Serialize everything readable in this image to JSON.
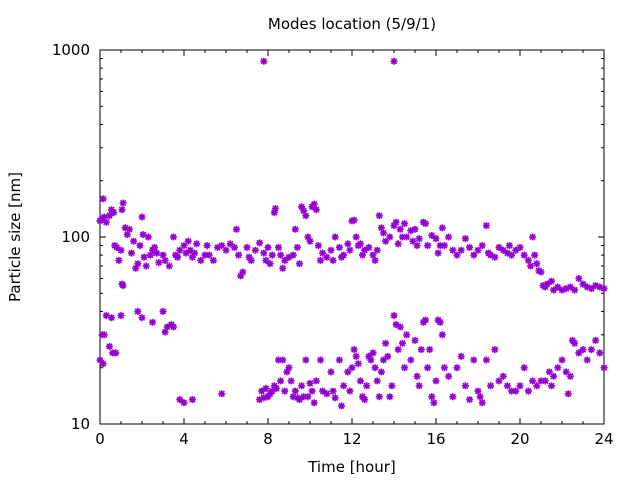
{
  "chart_data": {
    "type": "scatter",
    "title": "Modes location (5/9/1)",
    "xlabel": "Time [hour]",
    "ylabel": "Particle size [nm]",
    "x_range": [
      0,
      24
    ],
    "y_range": [
      10,
      1000
    ],
    "y_scale": "log",
    "x_ticks": [
      "0",
      "4",
      "8",
      "12",
      "16",
      "20",
      "24"
    ],
    "y_ticks": [
      "10",
      "100",
      "1000"
    ],
    "grid": false,
    "marker": "star",
    "marker_color": "#9400d3",
    "series": [
      {
        "points": [
          [
            0.0,
            122
          ],
          [
            0.1,
            126
          ],
          [
            0.15,
            160
          ],
          [
            0.2,
            128
          ],
          [
            0.3,
            120
          ],
          [
            0.45,
            130
          ],
          [
            0.55,
            140
          ],
          [
            0.65,
            135
          ],
          [
            0.7,
            90
          ],
          [
            0.8,
            88
          ],
          [
            0.9,
            75
          ],
          [
            1.0,
            85
          ],
          [
            1.05,
            140
          ],
          [
            1.1,
            152
          ],
          [
            1.2,
            112
          ],
          [
            1.3,
            103
          ],
          [
            1.4,
            110
          ],
          [
            1.5,
            82
          ],
          [
            1.6,
            95
          ],
          [
            1.7,
            68
          ],
          [
            1.8,
            72
          ],
          [
            1.9,
            90
          ],
          [
            2.0,
            128
          ],
          [
            2.05,
            103
          ],
          [
            2.1,
            78
          ],
          [
            2.2,
            70
          ],
          [
            2.3,
            100
          ],
          [
            2.4,
            80
          ],
          [
            2.5,
            85
          ],
          [
            2.6,
            88
          ],
          [
            2.7,
            82
          ],
          [
            2.8,
            73
          ],
          [
            3.0,
            80
          ],
          [
            3.1,
            75
          ],
          [
            3.3,
            70
          ],
          [
            3.5,
            100
          ],
          [
            3.6,
            80
          ],
          [
            3.7,
            78
          ],
          [
            3.8,
            85
          ],
          [
            4.0,
            90
          ],
          [
            4.1,
            82
          ],
          [
            4.2,
            95
          ],
          [
            4.3,
            85
          ],
          [
            4.4,
            78
          ],
          [
            4.5,
            82
          ],
          [
            4.6,
            92
          ],
          [
            4.8,
            75
          ],
          [
            5.0,
            80
          ],
          [
            5.1,
            90
          ],
          [
            5.2,
            80
          ],
          [
            5.4,
            75
          ],
          [
            5.6,
            88
          ],
          [
            5.8,
            90
          ],
          [
            6.0,
            85
          ],
          [
            6.2,
            92
          ],
          [
            6.4,
            88
          ],
          [
            6.5,
            110
          ],
          [
            6.6,
            80
          ],
          [
            6.7,
            62
          ],
          [
            6.8,
            65
          ],
          [
            7.0,
            88
          ],
          [
            7.1,
            78
          ],
          [
            7.2,
            75
          ],
          [
            7.4,
            85
          ],
          [
            7.6,
            93
          ],
          [
            7.8,
            82
          ],
          [
            7.9,
            75
          ],
          [
            8.0,
            88
          ],
          [
            8.1,
            72
          ],
          [
            8.2,
            80
          ],
          [
            8.3,
            135
          ],
          [
            8.35,
            142
          ],
          [
            8.5,
            88
          ],
          [
            8.6,
            80
          ],
          [
            8.7,
            68
          ],
          [
            8.8,
            75
          ],
          [
            9.0,
            78
          ],
          [
            9.2,
            80
          ],
          [
            9.3,
            110
          ],
          [
            9.4,
            88
          ],
          [
            9.5,
            72
          ],
          [
            9.6,
            145
          ],
          [
            9.7,
            138
          ],
          [
            9.8,
            130
          ],
          [
            9.9,
            100
          ],
          [
            10.0,
            95
          ],
          [
            10.1,
            145
          ],
          [
            10.2,
            150
          ],
          [
            10.3,
            140
          ],
          [
            10.4,
            90
          ],
          [
            10.5,
            75
          ],
          [
            10.6,
            82
          ],
          [
            10.8,
            78
          ],
          [
            11.0,
            85
          ],
          [
            11.1,
            75
          ],
          [
            11.2,
            100
          ],
          [
            11.4,
            88
          ],
          [
            11.5,
            78
          ],
          [
            11.6,
            80
          ],
          [
            11.8,
            92
          ],
          [
            11.9,
            85
          ],
          [
            12.0,
            122
          ],
          [
            12.1,
            123
          ],
          [
            12.2,
            100
          ],
          [
            12.3,
            90
          ],
          [
            12.4,
            92
          ],
          [
            12.5,
            80
          ],
          [
            12.6,
            85
          ],
          [
            12.8,
            88
          ],
          [
            13.0,
            80
          ],
          [
            13.1,
            75
          ],
          [
            13.2,
            85
          ],
          [
            13.3,
            130
          ],
          [
            13.4,
            112
          ],
          [
            13.5,
            105
          ],
          [
            13.6,
            95
          ],
          [
            13.8,
            100
          ],
          [
            14.0,
            115
          ],
          [
            14.1,
            120
          ],
          [
            14.2,
            92
          ],
          [
            14.3,
            110
          ],
          [
            14.4,
            100
          ],
          [
            14.5,
            118
          ],
          [
            14.6,
            100
          ],
          [
            14.8,
            108
          ],
          [
            14.9,
            95
          ],
          [
            15.0,
            110
          ],
          [
            15.1,
            90
          ],
          [
            15.2,
            98
          ],
          [
            15.4,
            120
          ],
          [
            15.5,
            118
          ],
          [
            15.6,
            90
          ],
          [
            15.8,
            102
          ],
          [
            16.0,
            98
          ],
          [
            16.1,
            82
          ],
          [
            16.2,
            90
          ],
          [
            16.3,
            112
          ],
          [
            16.4,
            90
          ],
          [
            16.6,
            100
          ],
          [
            16.8,
            85
          ],
          [
            17.0,
            80
          ],
          [
            17.2,
            85
          ],
          [
            17.4,
            98
          ],
          [
            17.6,
            88
          ],
          [
            17.8,
            80
          ],
          [
            18.0,
            85
          ],
          [
            18.2,
            90
          ],
          [
            18.4,
            115
          ],
          [
            18.5,
            82
          ],
          [
            18.6,
            80
          ],
          [
            18.8,
            78
          ],
          [
            19.0,
            88
          ],
          [
            19.2,
            85
          ],
          [
            19.4,
            82
          ],
          [
            19.5,
            90
          ],
          [
            19.6,
            80
          ],
          [
            19.8,
            85
          ],
          [
            20.0,
            88
          ],
          [
            20.2,
            80
          ],
          [
            20.4,
            75
          ],
          [
            20.5,
            70
          ],
          [
            20.6,
            100
          ],
          [
            20.7,
            80
          ],
          [
            20.8,
            72
          ],
          [
            20.9,
            66
          ],
          [
            21.0,
            65
          ],
          [
            21.1,
            55
          ],
          [
            21.2,
            54
          ],
          [
            21.3,
            56
          ],
          [
            21.5,
            58
          ],
          [
            21.6,
            52
          ],
          [
            21.8,
            54
          ],
          [
            22.0,
            52
          ],
          [
            22.2,
            53
          ],
          [
            22.4,
            54
          ],
          [
            22.6,
            52
          ],
          [
            22.8,
            60
          ],
          [
            23.0,
            56
          ],
          [
            23.2,
            54
          ],
          [
            23.4,
            53
          ],
          [
            23.6,
            55
          ],
          [
            23.8,
            54
          ],
          [
            24.0,
            53
          ],
          [
            0.0,
            22
          ],
          [
            0.1,
            30
          ],
          [
            0.15,
            21
          ],
          [
            0.2,
            30
          ],
          [
            0.3,
            38
          ],
          [
            0.45,
            26
          ],
          [
            0.55,
            37
          ],
          [
            0.6,
            24
          ],
          [
            0.75,
            24
          ],
          [
            1.0,
            38
          ],
          [
            1.05,
            56
          ],
          [
            1.1,
            55
          ],
          [
            1.8,
            40
          ],
          [
            2.0,
            37
          ],
          [
            2.5,
            35
          ],
          [
            3.0,
            40
          ],
          [
            3.1,
            31
          ],
          [
            3.2,
            33
          ],
          [
            3.4,
            34
          ],
          [
            3.5,
            33
          ],
          [
            3.8,
            13.5
          ],
          [
            4.0,
            13
          ],
          [
            4.4,
            13.5
          ],
          [
            5.8,
            14.5
          ],
          [
            7.6,
            13.5
          ],
          [
            7.7,
            15
          ],
          [
            7.8,
            13.8
          ],
          [
            7.9,
            15.5
          ],
          [
            8.0,
            14
          ],
          [
            8.1,
            14.5
          ],
          [
            8.2,
            15
          ],
          [
            8.3,
            16
          ],
          [
            8.4,
            15.5
          ],
          [
            8.5,
            22
          ],
          [
            8.6,
            17
          ],
          [
            8.7,
            22
          ],
          [
            8.8,
            15
          ],
          [
            8.9,
            19
          ],
          [
            9.0,
            20
          ],
          [
            9.1,
            17
          ],
          [
            9.2,
            14
          ],
          [
            9.3,
            15
          ],
          [
            9.4,
            13.8
          ],
          [
            9.5,
            13.5
          ],
          [
            9.6,
            16
          ],
          [
            9.7,
            14
          ],
          [
            9.8,
            22
          ],
          [
            9.9,
            14
          ],
          [
            10.0,
            16.5
          ],
          [
            10.1,
            15
          ],
          [
            10.2,
            13
          ],
          [
            10.3,
            17
          ],
          [
            10.5,
            22
          ],
          [
            10.6,
            15
          ],
          [
            10.8,
            14.5
          ],
          [
            11.0,
            19
          ],
          [
            11.1,
            15
          ],
          [
            11.2,
            13.8
          ],
          [
            11.4,
            22
          ],
          [
            11.5,
            12.5
          ],
          [
            11.6,
            16
          ],
          [
            11.8,
            19
          ],
          [
            11.9,
            15
          ],
          [
            12.0,
            20
          ],
          [
            12.1,
            25
          ],
          [
            12.2,
            23
          ],
          [
            12.3,
            21
          ],
          [
            12.4,
            17
          ],
          [
            12.5,
            14
          ],
          [
            12.6,
            13.5
          ],
          [
            12.7,
            16
          ],
          [
            12.8,
            23
          ],
          [
            12.9,
            22
          ],
          [
            13.0,
            24
          ],
          [
            13.1,
            20
          ],
          [
            13.2,
            17
          ],
          [
            13.3,
            14
          ],
          [
            13.4,
            19
          ],
          [
            13.5,
            22
          ],
          [
            13.6,
            27
          ],
          [
            13.7,
            23
          ],
          [
            13.8,
            14
          ],
          [
            13.9,
            16
          ],
          [
            14.0,
            38
          ],
          [
            14.1,
            34
          ],
          [
            14.2,
            25
          ],
          [
            14.3,
            33
          ],
          [
            14.4,
            27
          ],
          [
            14.5,
            20
          ],
          [
            14.6,
            30
          ],
          [
            14.8,
            22
          ],
          [
            15.0,
            28
          ],
          [
            15.1,
            18
          ],
          [
            15.2,
            16
          ],
          [
            15.3,
            25
          ],
          [
            15.4,
            35
          ],
          [
            15.5,
            36
          ],
          [
            15.6,
            20
          ],
          [
            15.7,
            25
          ],
          [
            15.8,
            14
          ],
          [
            15.9,
            13
          ],
          [
            16.0,
            17
          ],
          [
            16.1,
            36
          ],
          [
            16.2,
            35
          ],
          [
            16.3,
            30
          ],
          [
            16.4,
            20
          ],
          [
            16.6,
            18
          ],
          [
            16.8,
            14
          ],
          [
            17.0,
            20
          ],
          [
            17.2,
            23
          ],
          [
            17.4,
            16
          ],
          [
            17.6,
            13.5
          ],
          [
            17.8,
            22
          ],
          [
            18.0,
            15
          ],
          [
            18.1,
            14
          ],
          [
            18.2,
            13
          ],
          [
            18.4,
            22
          ],
          [
            18.6,
            16
          ],
          [
            18.8,
            25
          ],
          [
            19.0,
            17
          ],
          [
            19.2,
            18
          ],
          [
            19.4,
            16
          ],
          [
            19.6,
            15
          ],
          [
            19.8,
            15
          ],
          [
            20.0,
            16
          ],
          [
            20.2,
            20
          ],
          [
            20.4,
            15
          ],
          [
            20.6,
            17
          ],
          [
            20.8,
            16
          ],
          [
            21.0,
            17
          ],
          [
            21.2,
            17
          ],
          [
            21.4,
            19
          ],
          [
            21.5,
            16
          ],
          [
            21.6,
            18
          ],
          [
            21.8,
            20
          ],
          [
            22.0,
            22
          ],
          [
            22.2,
            19
          ],
          [
            22.3,
            14.5
          ],
          [
            22.4,
            18
          ],
          [
            22.5,
            28
          ],
          [
            22.6,
            27
          ],
          [
            22.8,
            24
          ],
          [
            23.0,
            25
          ],
          [
            23.2,
            22
          ],
          [
            23.4,
            25
          ],
          [
            23.6,
            28
          ],
          [
            23.8,
            24
          ],
          [
            24.0,
            20
          ],
          [
            7.8,
            870
          ],
          [
            14.0,
            870
          ]
        ]
      }
    ]
  }
}
